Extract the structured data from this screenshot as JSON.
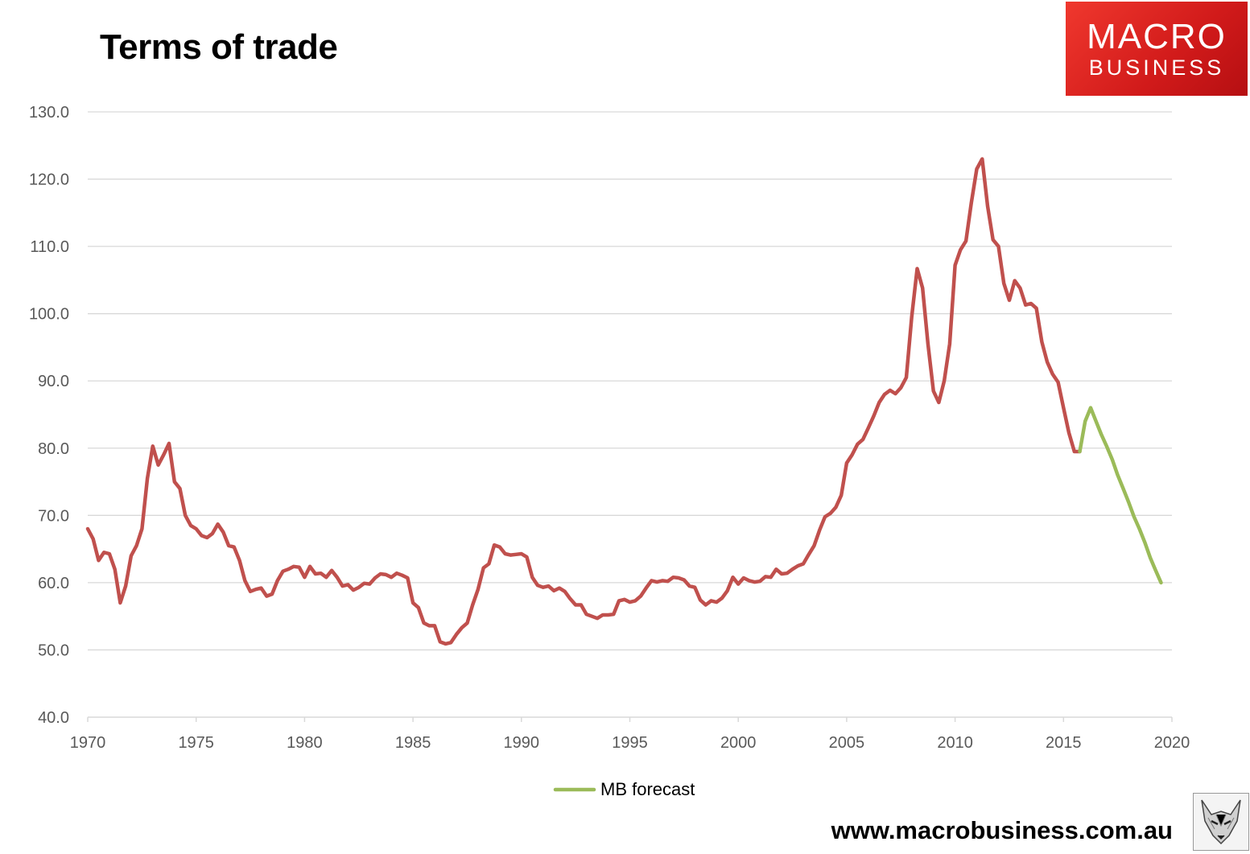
{
  "title": "Terms of trade",
  "logo": {
    "line1": "MACRO",
    "line2": "BUSINESS"
  },
  "website": "www.macrobusiness.com.au",
  "colors": {
    "history": "#c0504d",
    "forecast": "#9bbb59",
    "grid": "#d9d9d9",
    "axis_text": "#595959"
  },
  "icons": {
    "fox": "fox-mascot-icon"
  },
  "chart_data": {
    "type": "line",
    "title": "Terms of trade",
    "xlim": [
      1970,
      2020
    ],
    "ylim": [
      40,
      130
    ],
    "xticks": [
      "1970",
      "1975",
      "1980",
      "1985",
      "1990",
      "1995",
      "2000",
      "2005",
      "2010",
      "2015",
      "2020"
    ],
    "yticks": [
      "40.0",
      "50.0",
      "60.0",
      "70.0",
      "80.0",
      "90.0",
      "100.0",
      "110.0",
      "120.0",
      "130.0"
    ],
    "grid": true,
    "legend_position": "bottom",
    "series": [
      {
        "name": "",
        "color": "#c0504d",
        "points": [
          [
            1970.0,
            68.0
          ],
          [
            1970.25,
            66.5
          ],
          [
            1970.5,
            63.3
          ],
          [
            1970.75,
            64.5
          ],
          [
            1971.0,
            64.3
          ],
          [
            1971.25,
            62.0
          ],
          [
            1971.5,
            57.0
          ],
          [
            1971.75,
            59.5
          ],
          [
            1972.0,
            64.0
          ],
          [
            1972.25,
            65.5
          ],
          [
            1972.5,
            68.0
          ],
          [
            1972.75,
            75.5
          ],
          [
            1973.0,
            80.3
          ],
          [
            1973.25,
            77.5
          ],
          [
            1973.5,
            79.0
          ],
          [
            1973.75,
            80.7
          ],
          [
            1974.0,
            75.0
          ],
          [
            1974.25,
            74.0
          ],
          [
            1974.5,
            70.0
          ],
          [
            1974.75,
            68.5
          ],
          [
            1975.0,
            68.0
          ],
          [
            1975.25,
            67.0
          ],
          [
            1975.5,
            66.7
          ],
          [
            1975.75,
            67.3
          ],
          [
            1976.0,
            68.7
          ],
          [
            1976.25,
            67.5
          ],
          [
            1976.5,
            65.5
          ],
          [
            1976.75,
            65.3
          ],
          [
            1977.0,
            63.3
          ],
          [
            1977.25,
            60.3
          ],
          [
            1977.5,
            58.7
          ],
          [
            1977.75,
            59.0
          ],
          [
            1978.0,
            59.2
          ],
          [
            1978.25,
            58.0
          ],
          [
            1978.5,
            58.3
          ],
          [
            1978.75,
            60.3
          ],
          [
            1979.0,
            61.7
          ],
          [
            1979.25,
            62.0
          ],
          [
            1979.5,
            62.4
          ],
          [
            1979.75,
            62.3
          ],
          [
            1980.0,
            60.8
          ],
          [
            1980.25,
            62.4
          ],
          [
            1980.5,
            61.3
          ],
          [
            1980.75,
            61.4
          ],
          [
            1981.0,
            60.8
          ],
          [
            1981.25,
            61.8
          ],
          [
            1981.5,
            60.8
          ],
          [
            1981.75,
            59.5
          ],
          [
            1982.0,
            59.7
          ],
          [
            1982.25,
            58.9
          ],
          [
            1982.5,
            59.3
          ],
          [
            1982.75,
            59.9
          ],
          [
            1983.0,
            59.8
          ],
          [
            1983.25,
            60.7
          ],
          [
            1983.5,
            61.3
          ],
          [
            1983.75,
            61.2
          ],
          [
            1984.0,
            60.8
          ],
          [
            1984.25,
            61.4
          ],
          [
            1984.5,
            61.1
          ],
          [
            1984.75,
            60.7
          ],
          [
            1985.0,
            57.0
          ],
          [
            1985.25,
            56.3
          ],
          [
            1985.5,
            54.0
          ],
          [
            1985.75,
            53.6
          ],
          [
            1986.0,
            53.6
          ],
          [
            1986.25,
            51.2
          ],
          [
            1986.5,
            50.9
          ],
          [
            1986.75,
            51.1
          ],
          [
            1987.0,
            52.3
          ],
          [
            1987.25,
            53.3
          ],
          [
            1987.5,
            54.0
          ],
          [
            1987.75,
            56.7
          ],
          [
            1988.0,
            59.0
          ],
          [
            1988.25,
            62.2
          ],
          [
            1988.5,
            62.8
          ],
          [
            1988.75,
            65.6
          ],
          [
            1989.0,
            65.3
          ],
          [
            1989.25,
            64.3
          ],
          [
            1989.5,
            64.1
          ],
          [
            1989.75,
            64.2
          ],
          [
            1990.0,
            64.3
          ],
          [
            1990.25,
            63.8
          ],
          [
            1990.5,
            60.8
          ],
          [
            1990.75,
            59.6
          ],
          [
            1991.0,
            59.3
          ],
          [
            1991.25,
            59.5
          ],
          [
            1991.5,
            58.8
          ],
          [
            1991.75,
            59.2
          ],
          [
            1992.0,
            58.7
          ],
          [
            1992.25,
            57.6
          ],
          [
            1992.5,
            56.7
          ],
          [
            1992.75,
            56.7
          ],
          [
            1993.0,
            55.3
          ],
          [
            1993.25,
            55.0
          ],
          [
            1993.5,
            54.7
          ],
          [
            1993.75,
            55.2
          ],
          [
            1994.0,
            55.2
          ],
          [
            1994.25,
            55.3
          ],
          [
            1994.5,
            57.3
          ],
          [
            1994.75,
            57.5
          ],
          [
            1995.0,
            57.1
          ],
          [
            1995.25,
            57.3
          ],
          [
            1995.5,
            58.0
          ],
          [
            1995.75,
            59.2
          ],
          [
            1996.0,
            60.3
          ],
          [
            1996.25,
            60.1
          ],
          [
            1996.5,
            60.3
          ],
          [
            1996.75,
            60.2
          ],
          [
            1997.0,
            60.8
          ],
          [
            1997.25,
            60.7
          ],
          [
            1997.5,
            60.4
          ],
          [
            1997.75,
            59.5
          ],
          [
            1998.0,
            59.3
          ],
          [
            1998.25,
            57.4
          ],
          [
            1998.5,
            56.7
          ],
          [
            1998.75,
            57.3
          ],
          [
            1999.0,
            57.1
          ],
          [
            1999.25,
            57.7
          ],
          [
            1999.5,
            58.8
          ],
          [
            1999.75,
            60.8
          ],
          [
            2000.0,
            59.8
          ],
          [
            2000.25,
            60.7
          ],
          [
            2000.5,
            60.3
          ],
          [
            2000.75,
            60.1
          ],
          [
            2001.0,
            60.2
          ],
          [
            2001.25,
            60.9
          ],
          [
            2001.5,
            60.8
          ],
          [
            2001.75,
            62.0
          ],
          [
            2002.0,
            61.3
          ],
          [
            2002.25,
            61.4
          ],
          [
            2002.5,
            62.0
          ],
          [
            2002.75,
            62.5
          ],
          [
            2003.0,
            62.8
          ],
          [
            2003.25,
            64.2
          ],
          [
            2003.5,
            65.5
          ],
          [
            2003.75,
            67.8
          ],
          [
            2004.0,
            69.8
          ],
          [
            2004.25,
            70.3
          ],
          [
            2004.5,
            71.2
          ],
          [
            2004.75,
            73.0
          ],
          [
            2005.0,
            77.8
          ],
          [
            2005.25,
            79.0
          ],
          [
            2005.5,
            80.6
          ],
          [
            2005.75,
            81.3
          ],
          [
            2006.0,
            83.0
          ],
          [
            2006.25,
            84.8
          ],
          [
            2006.5,
            86.8
          ],
          [
            2006.75,
            88.0
          ],
          [
            2007.0,
            88.6
          ],
          [
            2007.25,
            88.1
          ],
          [
            2007.5,
            89.0
          ],
          [
            2007.75,
            90.5
          ],
          [
            2008.0,
            99.5
          ],
          [
            2008.25,
            106.7
          ],
          [
            2008.5,
            103.8
          ],
          [
            2008.75,
            95.5
          ],
          [
            2009.0,
            88.5
          ],
          [
            2009.25,
            86.8
          ],
          [
            2009.5,
            90.0
          ],
          [
            2009.75,
            95.5
          ],
          [
            2010.0,
            107.2
          ],
          [
            2010.25,
            109.5
          ],
          [
            2010.5,
            110.8
          ],
          [
            2010.75,
            116.5
          ],
          [
            2011.0,
            121.5
          ],
          [
            2011.25,
            123.0
          ],
          [
            2011.5,
            116.0
          ],
          [
            2011.75,
            111.0
          ],
          [
            2012.0,
            110.0
          ],
          [
            2012.25,
            104.5
          ],
          [
            2012.5,
            102.0
          ],
          [
            2012.75,
            104.9
          ],
          [
            2013.0,
            103.8
          ],
          [
            2013.25,
            101.3
          ],
          [
            2013.5,
            101.5
          ],
          [
            2013.75,
            100.8
          ],
          [
            2014.0,
            95.8
          ],
          [
            2014.25,
            92.8
          ],
          [
            2014.5,
            91.0
          ],
          [
            2014.75,
            89.8
          ],
          [
            2015.0,
            86.0
          ],
          [
            2015.25,
            82.3
          ],
          [
            2015.5,
            79.5
          ],
          [
            2015.75,
            79.5
          ]
        ]
      },
      {
        "name": "MB forecast",
        "color": "#9bbb59",
        "points": [
          [
            2015.75,
            79.5
          ],
          [
            2016.0,
            84.0
          ],
          [
            2016.25,
            86.0
          ],
          [
            2016.5,
            84.0
          ],
          [
            2016.75,
            82.0
          ],
          [
            2017.0,
            80.2
          ],
          [
            2017.25,
            78.3
          ],
          [
            2017.5,
            76.0
          ],
          [
            2017.75,
            74.0
          ],
          [
            2018.0,
            72.0
          ],
          [
            2018.25,
            69.8
          ],
          [
            2018.5,
            68.0
          ],
          [
            2018.75,
            66.0
          ],
          [
            2019.0,
            63.7
          ],
          [
            2019.25,
            61.8
          ],
          [
            2019.5,
            60.0
          ]
        ]
      }
    ]
  }
}
